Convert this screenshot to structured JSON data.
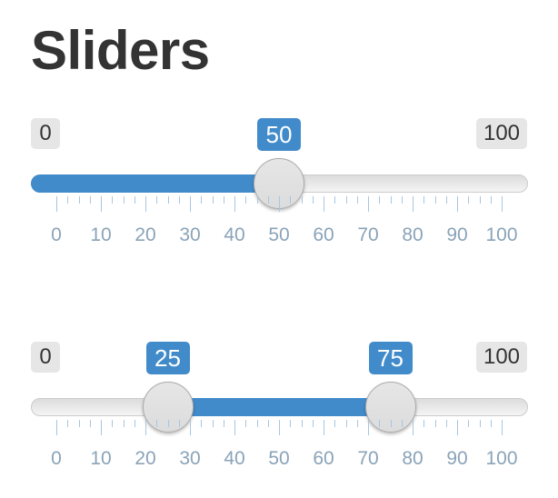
{
  "page": {
    "title": "Sliders"
  },
  "sliders": [
    {
      "type": "single",
      "min_label": "0",
      "max_label": "100",
      "min": 0,
      "max": 100,
      "value": 50,
      "value_label": "50",
      "tick_labels": [
        "0",
        "10",
        "20",
        "30",
        "40",
        "50",
        "60",
        "70",
        "80",
        "90",
        "100"
      ]
    },
    {
      "type": "range",
      "min_label": "0",
      "max_label": "100",
      "min": 0,
      "max": 100,
      "from": 25,
      "to": 75,
      "from_label": "25",
      "to_label": "75",
      "tick_labels": [
        "0",
        "10",
        "20",
        "30",
        "40",
        "50",
        "60",
        "70",
        "80",
        "90",
        "100"
      ]
    }
  ],
  "colors": {
    "accent": "#428bca",
    "tick": "#a8c6e0",
    "tick_label": "#8aa3b8",
    "badge_bg": "#e6e6e6"
  }
}
